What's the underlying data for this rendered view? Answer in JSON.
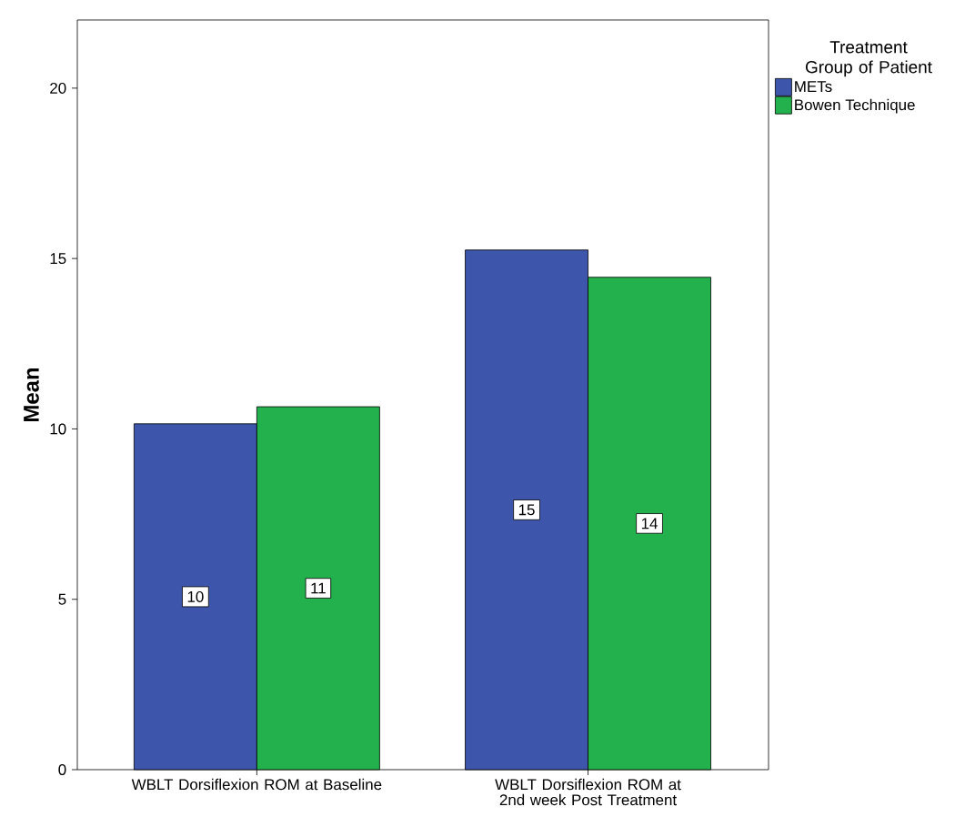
{
  "chart_data": {
    "type": "bar",
    "ylabel": "Mean",
    "legend_title": "Treatment Group of Patient",
    "categories": [
      "WBLT Dorsiflexion ROM at Baseline",
      "WBLT Dorsiflexion ROM at 2nd week Post Treatment"
    ],
    "series": [
      {
        "name": "METs",
        "color": "#3d56ab",
        "values": [
          10.15,
          15.25
        ],
        "value_labels": [
          "10",
          "15"
        ]
      },
      {
        "name": "Bowen Technique",
        "color": "#22b14c",
        "values": [
          10.65,
          14.45
        ],
        "value_labels": [
          "11",
          "14"
        ]
      }
    ],
    "ylim": [
      0,
      22
    ],
    "yticks": [
      0,
      5,
      10,
      15,
      20
    ],
    "grid": false,
    "legend": "top right"
  }
}
